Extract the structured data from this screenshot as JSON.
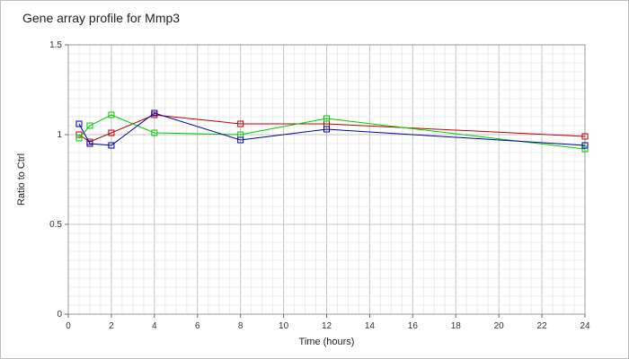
{
  "chart_data": {
    "type": "line",
    "title": "Gene array profile for Mmp3",
    "xlabel": "Time (hours)",
    "ylabel": "Ratio to Ctrl",
    "xlim": [
      0,
      24
    ],
    "ylim": [
      0,
      1.5
    ],
    "x_ticks": [
      "0",
      "2",
      "4",
      "6",
      "8",
      "10",
      "12",
      "14",
      "16",
      "18",
      "20",
      "22",
      "24"
    ],
    "y_ticks": [
      "0",
      "0.5",
      "1",
      "1.5"
    ],
    "grid": true,
    "marker": "square",
    "series": [
      {
        "color": "#c00000",
        "x": [
          0.5,
          1,
          2,
          4,
          8,
          12,
          24
        ],
        "y": [
          1.0,
          0.96,
          1.01,
          1.11,
          1.06,
          1.06,
          0.99
        ]
      },
      {
        "color": "#00cc00",
        "x": [
          0.5,
          1,
          2,
          4,
          8,
          12,
          24
        ],
        "y": [
          0.98,
          1.05,
          1.11,
          1.01,
          1.0,
          1.09,
          0.92
        ]
      },
      {
        "color": "#0000aa",
        "x": [
          0.5,
          1,
          2,
          4,
          8,
          12,
          24
        ],
        "y": [
          1.06,
          0.95,
          0.94,
          1.12,
          0.97,
          1.03,
          0.94
        ]
      }
    ]
  }
}
